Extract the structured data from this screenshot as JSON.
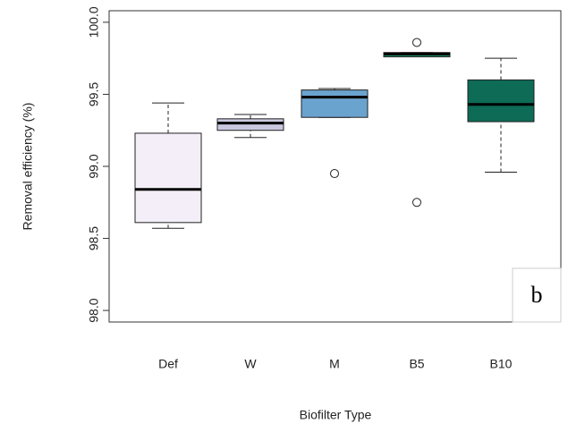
{
  "chart_data": {
    "type": "box",
    "y_label": "Removal efficiency (%)",
    "x_label": "Biofilter Type",
    "annotation": "b",
    "categories": [
      "Def",
      "W",
      "M",
      "B5",
      "B10"
    ],
    "boxes": [
      {
        "whisker_low": 98.57,
        "q1": 98.61,
        "median": 98.84,
        "q3": 99.23,
        "whisker_high": 99.44,
        "outliers": [],
        "color": "#f3eef7"
      },
      {
        "whisker_low": 99.2,
        "q1": 99.25,
        "median": 99.3,
        "q3": 99.33,
        "whisker_high": 99.36,
        "outliers": [],
        "color": "#c9c8e0"
      },
      {
        "whisker_low": 99.34,
        "q1": 99.34,
        "median": 99.48,
        "q3": 99.53,
        "whisker_high": 99.54,
        "outliers": [
          98.95
        ],
        "color": "#6ba3cf"
      },
      {
        "whisker_low": 99.76,
        "q1": 99.76,
        "median": 99.78,
        "q3": 99.79,
        "whisker_high": 99.79,
        "outliers": [
          98.75,
          99.86
        ],
        "color": "#1e8a6c"
      },
      {
        "whisker_low": 98.96,
        "q1": 99.31,
        "median": 99.43,
        "q3": 99.6,
        "whisker_high": 99.75,
        "outliers": [],
        "color": "#0d6b56"
      }
    ],
    "ylim": [
      97.92,
      100.08
    ],
    "yticks": [
      {
        "value": 98,
        "label": "98.0"
      },
      98.5,
      {
        "value": 99,
        "label": "99.0"
      },
      99.5,
      {
        "value": 100,
        "label": "100.0"
      }
    ]
  }
}
